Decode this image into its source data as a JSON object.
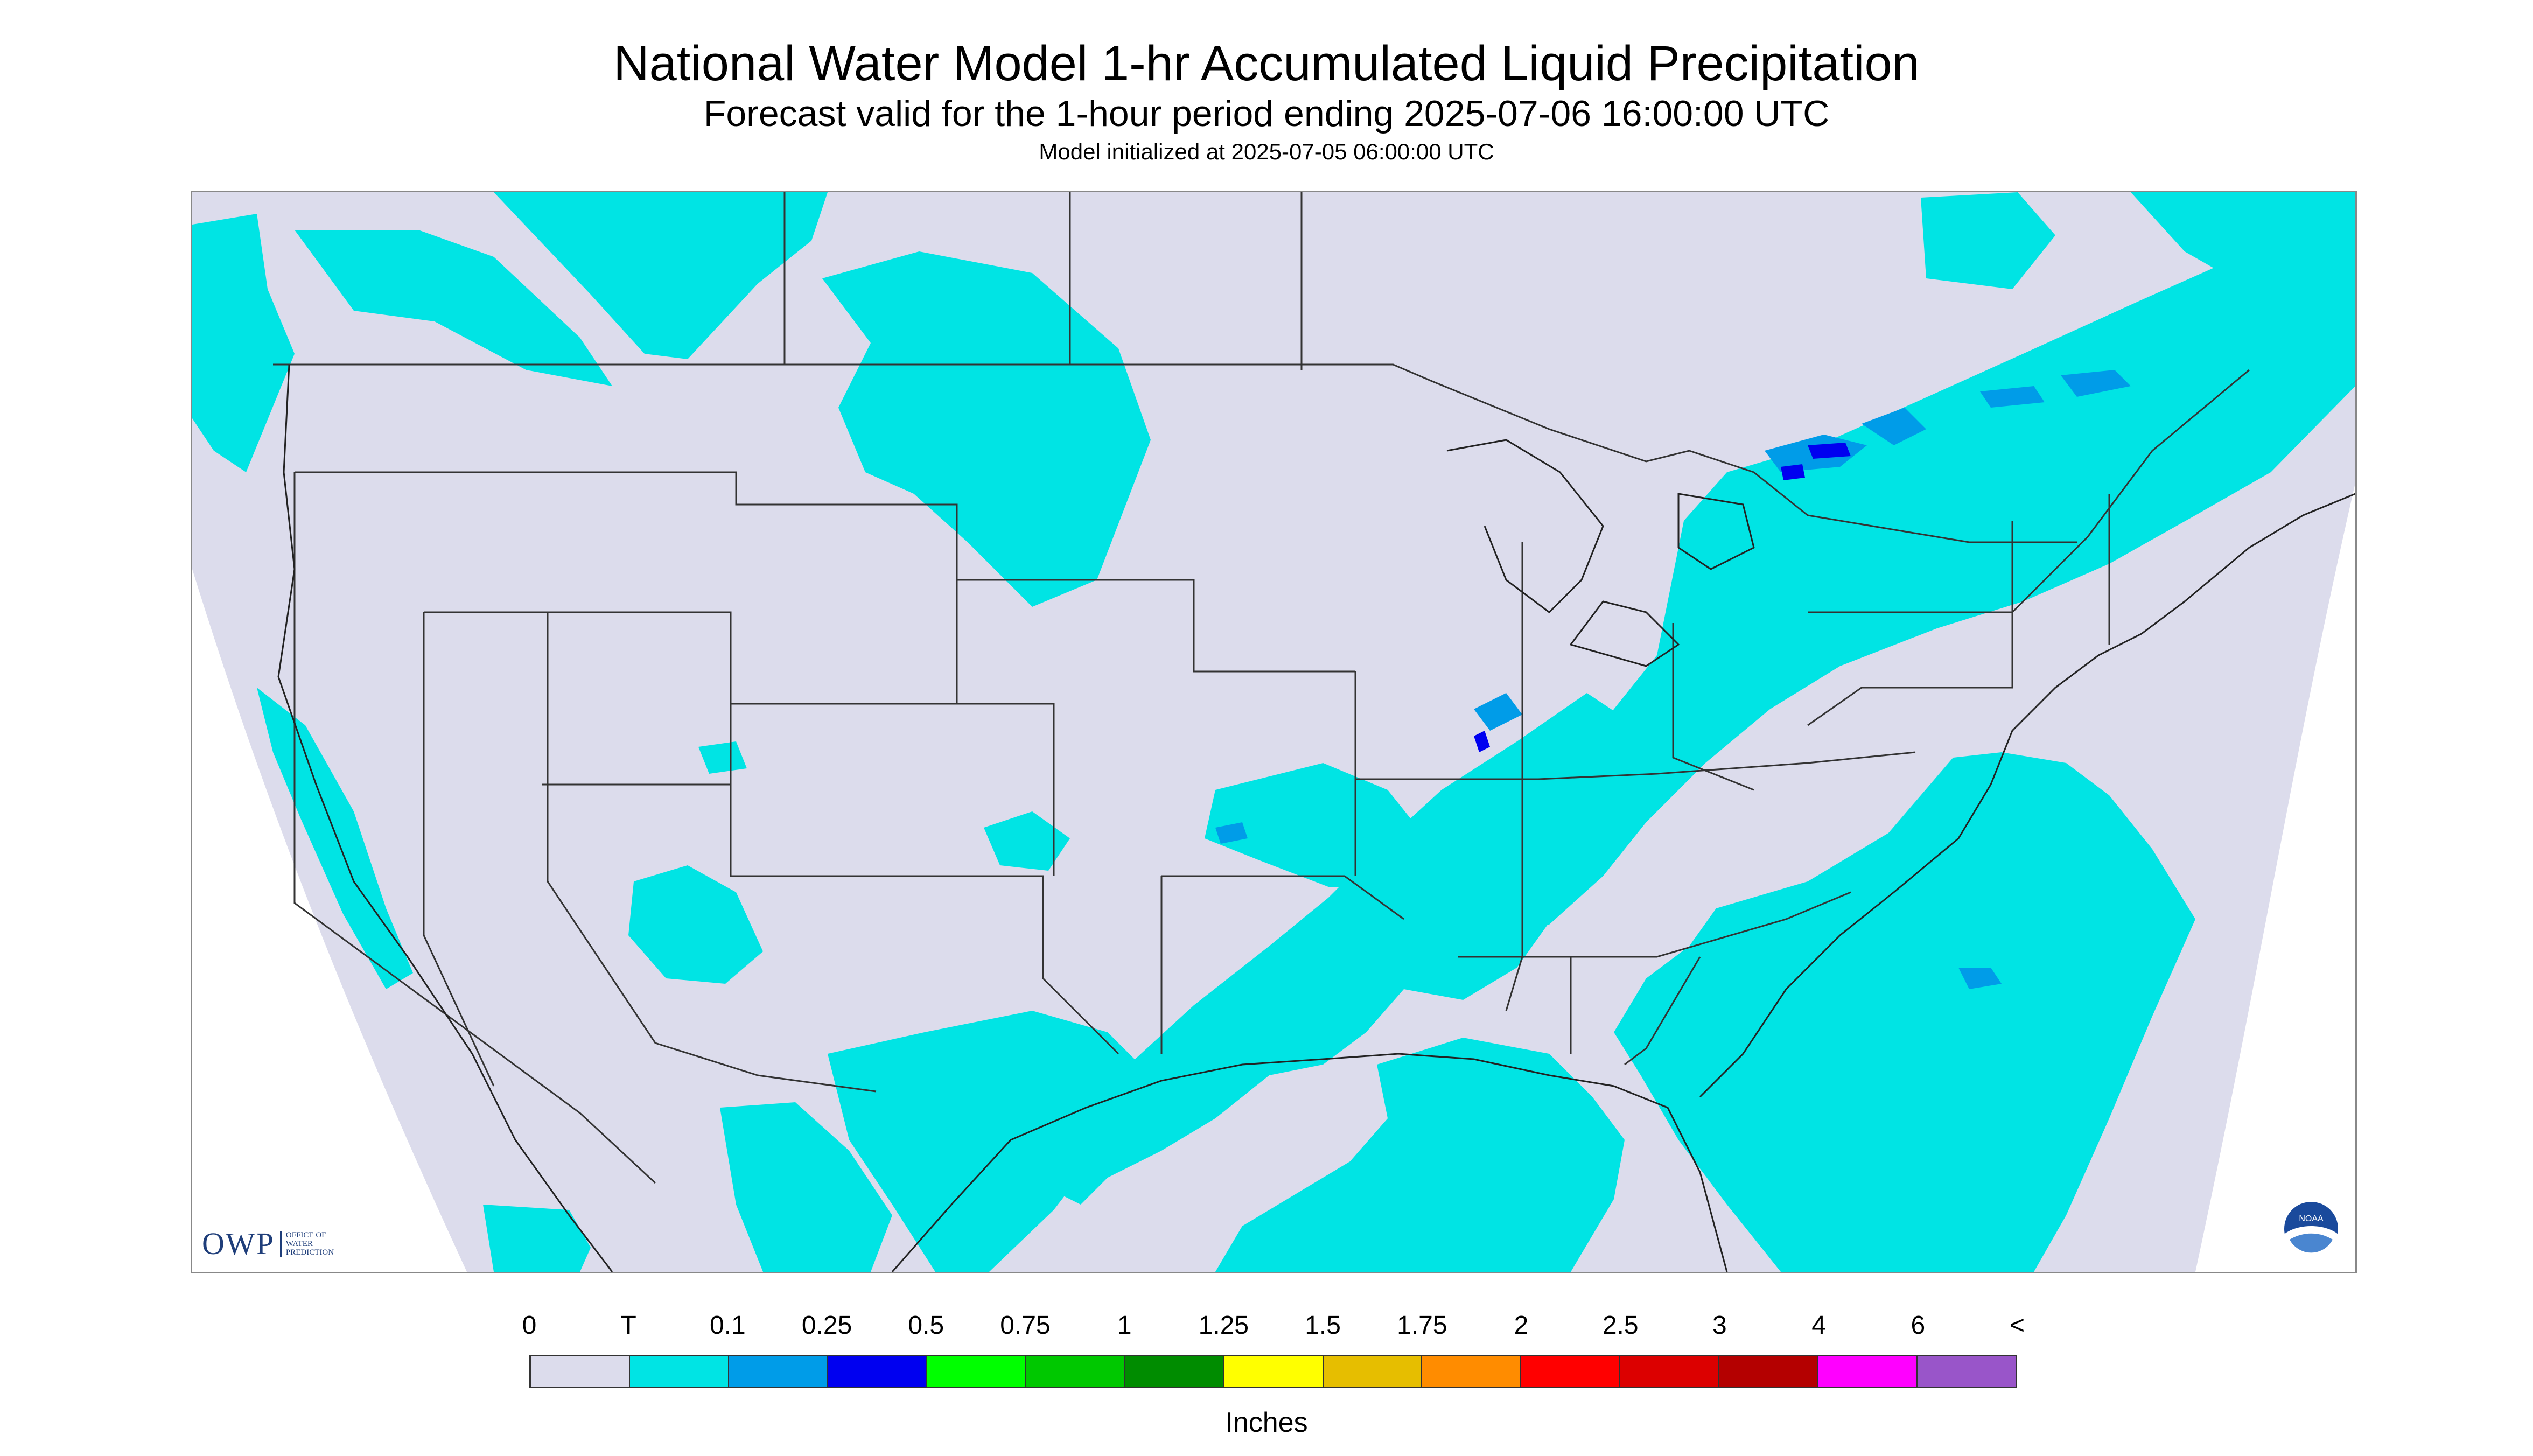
{
  "title": "National Water Model 1-hr Accumulated Liquid Precipitation",
  "subtitle": "Forecast valid for the 1-hour period ending 2025-07-06 16:00:00 UTC",
  "init_line": "Model initialized at 2025-07-05 06:00:00 UTC",
  "logo": {
    "owp_letters": "OWP",
    "owp_text": "OFFICE OF WATER PREDICTION",
    "noaa_text": "NOAA"
  },
  "colors": {
    "no_data": "#dcdcec",
    "map_background": "#ffffff",
    "border_lines": "#333333",
    "precip_trace": "#00e4e4",
    "precip_0_1": "#009ce8",
    "precip_0_25": "#0000f0"
  },
  "legend": {
    "labels": [
      "0",
      "T",
      "0.1",
      "0.25",
      "0.5",
      "0.75",
      "1",
      "1.25",
      "1.5",
      "1.75",
      "2",
      "2.5",
      "3",
      "4",
      "6",
      "<"
    ],
    "colors": [
      "#dcdcec",
      "#00e4e4",
      "#009ce8",
      "#0000f0",
      "#00ff00",
      "#00c800",
      "#008c00",
      "#ffff00",
      "#e6be00",
      "#ff8c00",
      "#ff0000",
      "#dc0000",
      "#b40000",
      "#ff00ff",
      "#9955c9"
    ],
    "units": "Inches"
  }
}
